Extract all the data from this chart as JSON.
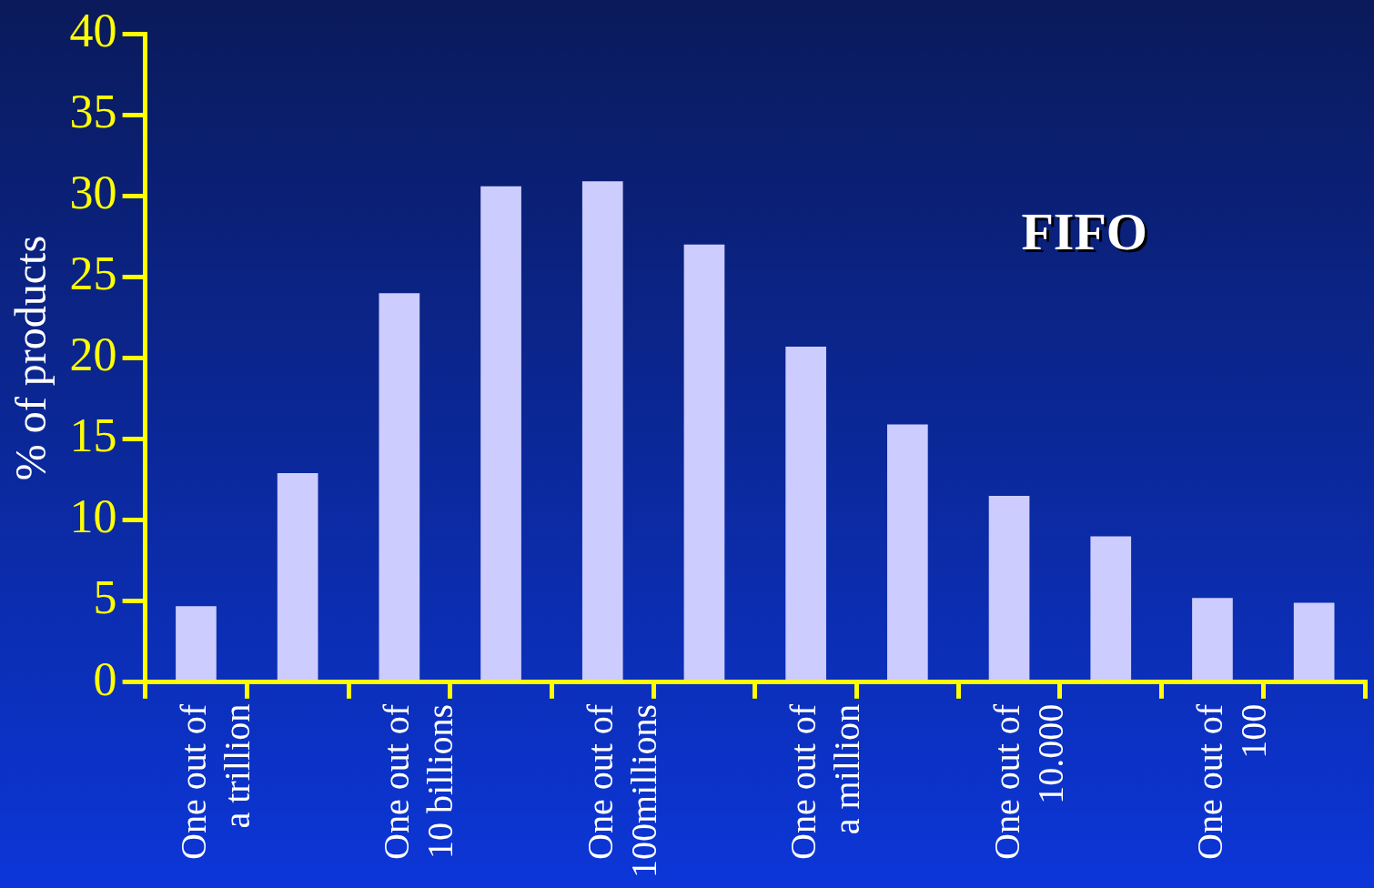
{
  "chart_data": {
    "type": "bar",
    "ylabel": "% of products",
    "categories": [
      "One out of\na trillion",
      null,
      "One out of\n10 billions",
      null,
      "One out of\n100millions",
      null,
      "One out of\na million",
      null,
      "One out of\n10.000",
      null,
      "One out of\n100",
      null
    ],
    "values": [
      4.7,
      12.9,
      24.0,
      30.6,
      30.9,
      27.0,
      20.7,
      15.9,
      11.5,
      9.0,
      5.2,
      4.9
    ],
    "color": "#ccccff",
    "ylim": [
      0,
      40
    ],
    "yticks": [
      0,
      5,
      10,
      15,
      20,
      25,
      30,
      35,
      40
    ],
    "grid": false,
    "legend": false,
    "annotations": [
      "FIFO"
    ]
  }
}
